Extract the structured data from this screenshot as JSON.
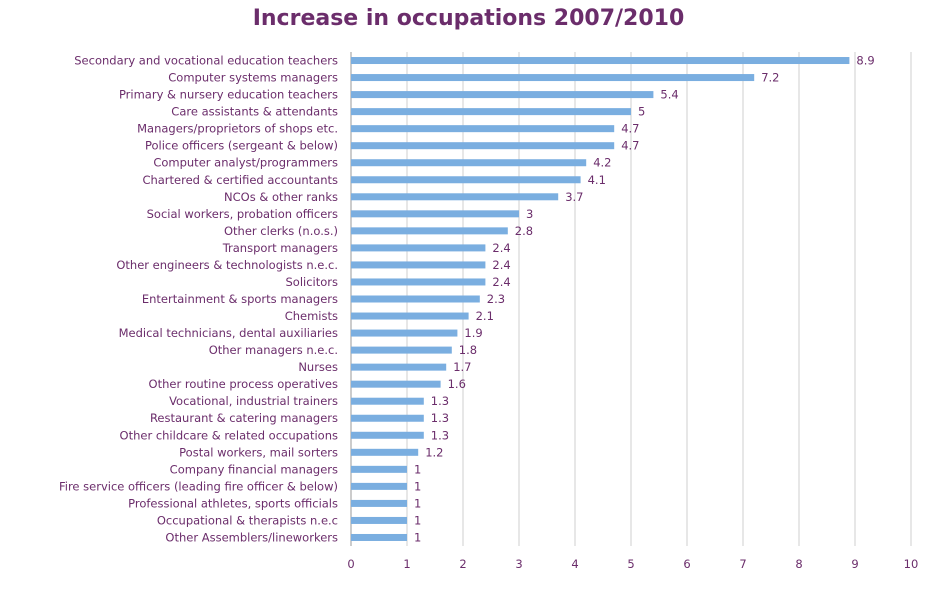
{
  "chart_data": {
    "type": "bar",
    "orientation": "horizontal",
    "title": "Increase in occupations 2007/2010",
    "xlabel": "",
    "ylabel": "",
    "xlim": [
      0,
      10
    ],
    "xticks": [
      0,
      1,
      2,
      3,
      4,
      5,
      6,
      7,
      8,
      9,
      10
    ],
    "grid": true,
    "bar_color": "#7aaee0",
    "text_color": "#6b2d6b",
    "categories": [
      "Secondary and vocational education teachers",
      "Computer systems managers",
      "Primary & nursery education teachers",
      "Care assistants & attendants",
      "Managers/proprietors of shops etc.",
      "Police officers (sergeant & below)",
      "Computer analyst/programmers",
      "Chartered & certified accountants",
      "NCOs & other ranks",
      "Social workers, probation officers",
      "Other clerks (n.o.s.)",
      "Transport managers",
      "Other engineers & technologists n.e.c.",
      "Solicitors",
      "Entertainment & sports managers",
      "Chemists",
      "Medical technicians, dental auxiliaries",
      "Other managers n.e.c.",
      "Nurses",
      "Other routine process operatives",
      "Vocational, industrial trainers",
      "Restaurant & catering managers",
      "Other childcare & related occupations",
      "Postal workers, mail sorters",
      "Company financial managers",
      "Fire service officers (leading fire officer & below)",
      "Professional athletes, sports officials",
      "Occupational & therapists n.e.c",
      "Other Assemblers/lineworkers"
    ],
    "values": [
      8.9,
      7.2,
      5.4,
      5,
      4.7,
      4.7,
      4.2,
      4.1,
      3.7,
      3,
      2.8,
      2.4,
      2.4,
      2.4,
      2.3,
      2.1,
      1.9,
      1.8,
      1.7,
      1.6,
      1.3,
      1.3,
      1.3,
      1.2,
      1,
      1,
      1,
      1,
      1
    ]
  }
}
